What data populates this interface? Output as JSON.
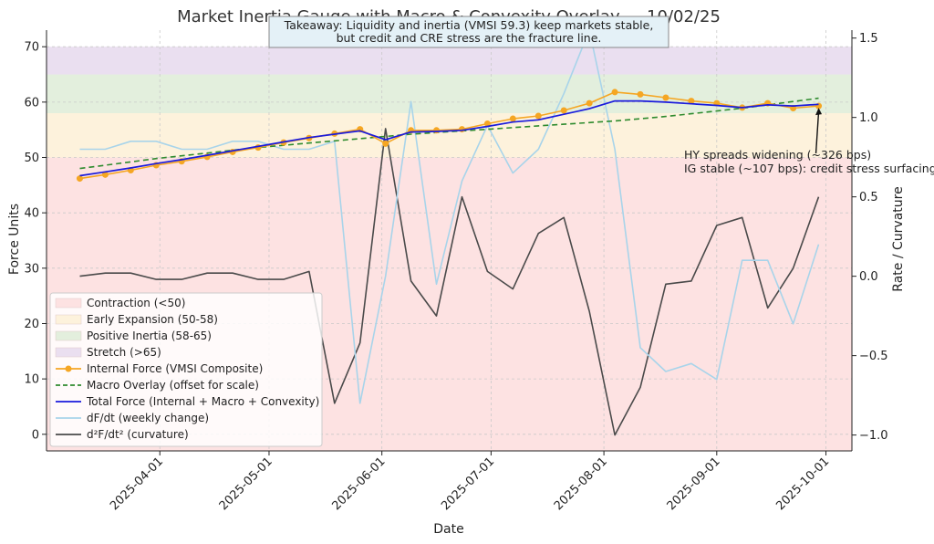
{
  "chart_data": {
    "type": "line",
    "title": "Market Inertia Gauge with Macro & Convexity Overlay — 10/02/25",
    "xlabel": "Date",
    "ylabel_left": "Force Units",
    "ylabel_right": "Rate / Curvature",
    "ylim_left": [
      -3,
      73
    ],
    "ylim_right": [
      -1.1,
      1.55
    ],
    "x_ticks": [
      "2025-04-01",
      "2025-05-01",
      "2025-06-01",
      "2025-07-01",
      "2025-08-01",
      "2025-09-01",
      "2025-10-01"
    ],
    "y_ticks_left": [
      0,
      10,
      20,
      30,
      40,
      50,
      60,
      70
    ],
    "y_ticks_right": [
      -1.0,
      -0.5,
      0.0,
      0.5,
      1.0,
      1.5
    ],
    "y_tick_labels_right": [
      "−1.0",
      "−0.5",
      "0.0",
      "0.5",
      "1.0",
      "1.5"
    ],
    "grid": true,
    "legend_position": "lower-left",
    "bands": [
      {
        "name": "Contraction (<50)",
        "from": -3,
        "to": 50,
        "color": "#fde2e2"
      },
      {
        "name": "Early Expansion (50-58)",
        "from": 50,
        "to": 58,
        "color": "#fdf2dc"
      },
      {
        "name": "Positive Inertia (58-65)",
        "from": 58,
        "to": 65,
        "color": "#e3efdd"
      },
      {
        "name": "Stretch (>65)",
        "from": 65,
        "to": 70,
        "color": "#eadff0"
      }
    ],
    "x": [
      "2025-03-10",
      "2025-03-17",
      "2025-03-24",
      "2025-03-31",
      "2025-04-07",
      "2025-04-14",
      "2025-04-21",
      "2025-04-28",
      "2025-05-05",
      "2025-05-12",
      "2025-05-19",
      "2025-05-26",
      "2025-06-02",
      "2025-06-09",
      "2025-06-16",
      "2025-06-23",
      "2025-06-30",
      "2025-07-07",
      "2025-07-14",
      "2025-07-21",
      "2025-07-28",
      "2025-08-04",
      "2025-08-11",
      "2025-08-18",
      "2025-08-25",
      "2025-09-01",
      "2025-09-08",
      "2025-09-15",
      "2025-09-22",
      "2025-09-29"
    ],
    "series": [
      {
        "name": "Internal Force (VMSI Composite)",
        "axis": "left",
        "color": "#f5a623",
        "style": "solid-marker",
        "values": [
          46.2,
          46.9,
          47.7,
          48.6,
          49.3,
          50.1,
          51.0,
          51.8,
          52.7,
          53.5,
          54.3,
          55.1,
          52.5,
          54.9,
          54.9,
          55.1,
          56.1,
          57.0,
          57.5,
          58.5,
          59.8,
          61.8,
          61.4,
          60.8,
          60.2,
          59.8,
          59.0,
          59.8,
          58.9,
          59.3
        ]
      },
      {
        "name": "Macro Overlay (offset for scale)",
        "axis": "left",
        "color": "#2e8b2e",
        "style": "dashed",
        "values": [
          48.0,
          48.6,
          49.2,
          49.8,
          50.3,
          50.8,
          51.3,
          51.8,
          52.2,
          52.6,
          53.0,
          53.4,
          53.8,
          54.2,
          54.5,
          54.8,
          55.1,
          55.4,
          55.7,
          56.0,
          56.3,
          56.6,
          57.0,
          57.4,
          57.9,
          58.4,
          58.9,
          59.5,
          60.1,
          60.7
        ]
      },
      {
        "name": "Total Force (Internal + Macro + Convexity)",
        "axis": "left",
        "color": "#1a1adc",
        "style": "solid",
        "values": [
          46.7,
          47.4,
          48.1,
          48.9,
          49.6,
          50.4,
          51.2,
          52.0,
          52.8,
          53.6,
          54.2,
          54.8,
          53.2,
          54.6,
          54.7,
          54.9,
          55.6,
          56.4,
          56.8,
          57.8,
          58.8,
          60.2,
          60.2,
          60.0,
          59.7,
          59.4,
          59.0,
          59.5,
          59.3,
          59.6
        ]
      },
      {
        "name": "dF/dt (weekly change)",
        "axis": "right",
        "color": "#a8d4ea",
        "style": "solid",
        "values": [
          0.8,
          0.8,
          0.85,
          0.85,
          0.8,
          0.8,
          0.85,
          0.85,
          0.8,
          0.8,
          0.85,
          -0.8,
          0.0,
          1.1,
          -0.05,
          0.6,
          0.95,
          0.65,
          0.8,
          1.15,
          1.55,
          0.8,
          -0.45,
          -0.6,
          -0.55,
          -0.65,
          0.1,
          0.1,
          -0.3,
          0.2
        ]
      },
      {
        "name": "d²F/dt² (curvature)",
        "axis": "right",
        "color": "#4a4a4a",
        "style": "solid",
        "values": [
          0.0,
          0.02,
          0.02,
          -0.02,
          -0.02,
          0.02,
          0.02,
          -0.02,
          -0.02,
          0.03,
          -0.8,
          -0.42,
          0.93,
          -0.03,
          -0.25,
          0.5,
          0.03,
          -0.08,
          0.27,
          0.37,
          -0.22,
          -1.0,
          -0.7,
          -0.05,
          -0.03,
          0.32,
          0.37,
          -0.2,
          0.05,
          0.5
        ]
      }
    ],
    "annotations": {
      "takeaway_line1": "Takeaway: Liquidity and inertia (VMSI 59.3) keep markets stable,",
      "takeaway_line2": "but credit and CRE stress are the fracture line.",
      "hy_line1": "HY spreads widening (~326 bps)",
      "hy_line2": "IG stable (~107 bps): credit stress surfacing"
    }
  }
}
